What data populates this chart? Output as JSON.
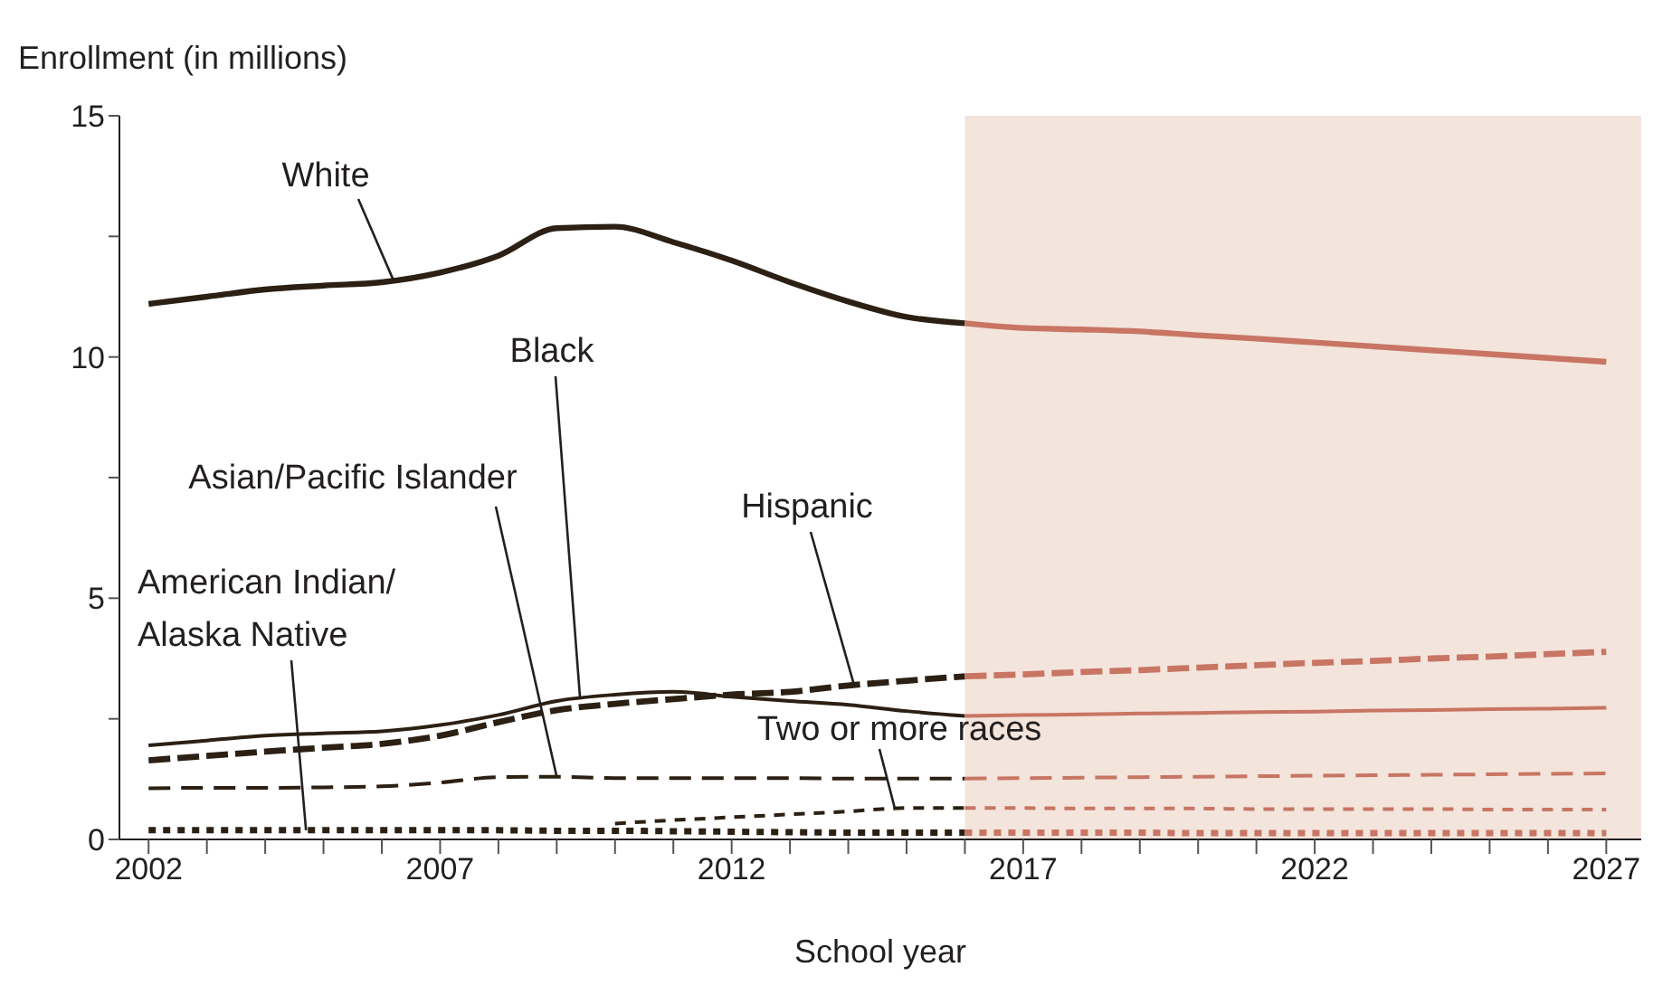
{
  "chart_data": {
    "type": "line",
    "ylabel": "Enrollment (in millions)",
    "xlabel": "School year",
    "xlim": [
      2001.5,
      2027.6
    ],
    "xticks": [
      2002,
      {
        "value": 2003,
        "label": null
      },
      {
        "value": 2004,
        "label": null
      },
      {
        "value": 2005,
        "label": null
      },
      {
        "value": 2006,
        "label": null
      },
      2007,
      {
        "value": 2008,
        "label": null
      },
      {
        "value": 2009,
        "label": null
      },
      {
        "value": 2010,
        "label": null
      },
      {
        "value": 2011,
        "label": null
      },
      2012,
      {
        "value": 2013,
        "label": null
      },
      {
        "value": 2014,
        "label": null
      },
      {
        "value": 2015,
        "label": null
      },
      {
        "value": 2016,
        "label": null
      },
      2017,
      {
        "value": 2018,
        "label": null
      },
      {
        "value": 2019,
        "label": null
      },
      {
        "value": 2020,
        "label": null
      },
      {
        "value": 2021,
        "label": null
      },
      2022,
      {
        "value": 2023,
        "label": null
      },
      {
        "value": 2024,
        "label": null
      },
      {
        "value": 2025,
        "label": null
      },
      {
        "value": 2026,
        "label": null
      },
      2027
    ],
    "ylim": [
      0,
      15
    ],
    "yticks": [
      0,
      {
        "value": 2.5,
        "label": null
      },
      5,
      {
        "value": 7.5,
        "label": null
      },
      10,
      {
        "value": 12.5,
        "label": null
      },
      15
    ],
    "grid": false,
    "legend": false,
    "marker": "none",
    "bands": [
      {
        "axis": "x",
        "from": 2016,
        "to": 2027.6,
        "color": "#f3e4dc"
      }
    ],
    "series": [
      {
        "name": "White",
        "color": "#2b2013",
        "line_style": "solid",
        "x": [
          2002,
          2003,
          2004,
          2005,
          2006,
          2007,
          2008,
          2009,
          2010,
          2011,
          2012,
          2013,
          2014,
          2015,
          2016
        ],
        "values": [
          11.1,
          11.25,
          11.4,
          11.48,
          11.55,
          11.75,
          12.1,
          12.67,
          12.7,
          12.38,
          12.0,
          11.55,
          11.15,
          10.83,
          10.7
        ]
      },
      {
        "name": "Black",
        "color": "#2b2013",
        "line_style": "solid",
        "x": [
          2002,
          2003,
          2004,
          2005,
          2006,
          2007,
          2008,
          2009,
          2010,
          2011,
          2012,
          2013,
          2014,
          2015,
          2016
        ],
        "values": [
          1.95,
          2.05,
          2.15,
          2.2,
          2.24,
          2.37,
          2.58,
          2.87,
          3.0,
          3.06,
          2.96,
          2.87,
          2.79,
          2.66,
          2.56
        ]
      },
      {
        "name": "Hispanic",
        "color": "#2b2013",
        "line_style": "dashed",
        "x": [
          2002,
          2003,
          2004,
          2005,
          2006,
          2007,
          2008,
          2009,
          2010,
          2011,
          2012,
          2013,
          2014,
          2015,
          2016
        ],
        "values": [
          1.64,
          1.73,
          1.82,
          1.9,
          1.98,
          2.15,
          2.43,
          2.68,
          2.81,
          2.91,
          3.0,
          3.06,
          3.19,
          3.29,
          3.38
        ]
      },
      {
        "name": "Asian/Pacific Islander",
        "color": "#2b2013",
        "line_style": "dashed",
        "x": [
          2002,
          2003,
          2004,
          2005,
          2006,
          2007,
          2008,
          2009,
          2010,
          2011,
          2012,
          2013,
          2014,
          2015,
          2016
        ],
        "values": [
          1.06,
          1.07,
          1.07,
          1.08,
          1.1,
          1.18,
          1.29,
          1.3,
          1.27,
          1.27,
          1.27,
          1.27,
          1.26,
          1.26,
          1.26
        ]
      },
      {
        "name": "American Indian/Alaska Native",
        "color": "#2b2013",
        "line_style": "dotted",
        "x": [
          2002,
          2003,
          2004,
          2005,
          2006,
          2007,
          2008,
          2009,
          2010,
          2011,
          2012,
          2013,
          2014,
          2015,
          2016
        ],
        "values": [
          0.19,
          0.19,
          0.19,
          0.19,
          0.19,
          0.19,
          0.19,
          0.18,
          0.18,
          0.17,
          0.16,
          0.15,
          0.14,
          0.14,
          0.14
        ]
      },
      {
        "name": "Two or more races",
        "color": "#2b2013",
        "line_style": "dashed",
        "x": [
          2010,
          2011,
          2012,
          2013,
          2014,
          2015,
          2016
        ],
        "values": [
          0.33,
          0.4,
          0.46,
          0.52,
          0.58,
          0.65,
          0.65
        ]
      },
      {
        "color": "#c87563",
        "line_style": "solid",
        "x": [
          2016,
          2017,
          2018,
          2019,
          2020,
          2021,
          2022,
          2023,
          2024,
          2025,
          2026,
          2027
        ],
        "values": [
          10.7,
          10.6,
          10.57,
          10.53,
          10.45,
          10.38,
          10.3,
          10.22,
          10.14,
          10.06,
          9.98,
          9.9
        ]
      },
      {
        "color": "#c87563",
        "line_style": "solid",
        "x": [
          2016,
          2017,
          2018,
          2019,
          2020,
          2021,
          2022,
          2023,
          2024,
          2025,
          2026,
          2027
        ],
        "values": [
          2.56,
          2.58,
          2.59,
          2.61,
          2.62,
          2.64,
          2.65,
          2.67,
          2.68,
          2.7,
          2.71,
          2.73
        ]
      },
      {
        "color": "#c87563",
        "line_style": "dashed",
        "x": [
          2016,
          2017,
          2018,
          2019,
          2020,
          2021,
          2022,
          2023,
          2024,
          2025,
          2026,
          2027
        ],
        "values": [
          3.38,
          3.42,
          3.47,
          3.51,
          3.56,
          3.61,
          3.66,
          3.7,
          3.75,
          3.79,
          3.84,
          3.89
        ]
      },
      {
        "color": "#c87563",
        "line_style": "dashed",
        "x": [
          2016,
          2017,
          2018,
          2019,
          2020,
          2021,
          2022,
          2023,
          2024,
          2025,
          2026,
          2027
        ],
        "values": [
          1.26,
          1.27,
          1.28,
          1.29,
          1.3,
          1.31,
          1.32,
          1.33,
          1.34,
          1.35,
          1.36,
          1.37
        ]
      },
      {
        "color": "#c87563",
        "line_style": "dotted",
        "x": [
          2016,
          2017,
          2018,
          2019,
          2020,
          2021,
          2022,
          2023,
          2024,
          2025,
          2026,
          2027
        ],
        "values": [
          0.14,
          0.14,
          0.14,
          0.14,
          0.13,
          0.13,
          0.13,
          0.13,
          0.13,
          0.13,
          0.13,
          0.13
        ]
      },
      {
        "color": "#c87563",
        "line_style": "dashed",
        "x": [
          2016,
          2017,
          2018,
          2019,
          2020,
          2021,
          2022,
          2023,
          2024,
          2025,
          2026,
          2027
        ],
        "values": [
          0.65,
          0.65,
          0.64,
          0.64,
          0.64,
          0.63,
          0.63,
          0.63,
          0.63,
          0.62,
          0.62,
          0.62
        ]
      }
    ]
  }
}
